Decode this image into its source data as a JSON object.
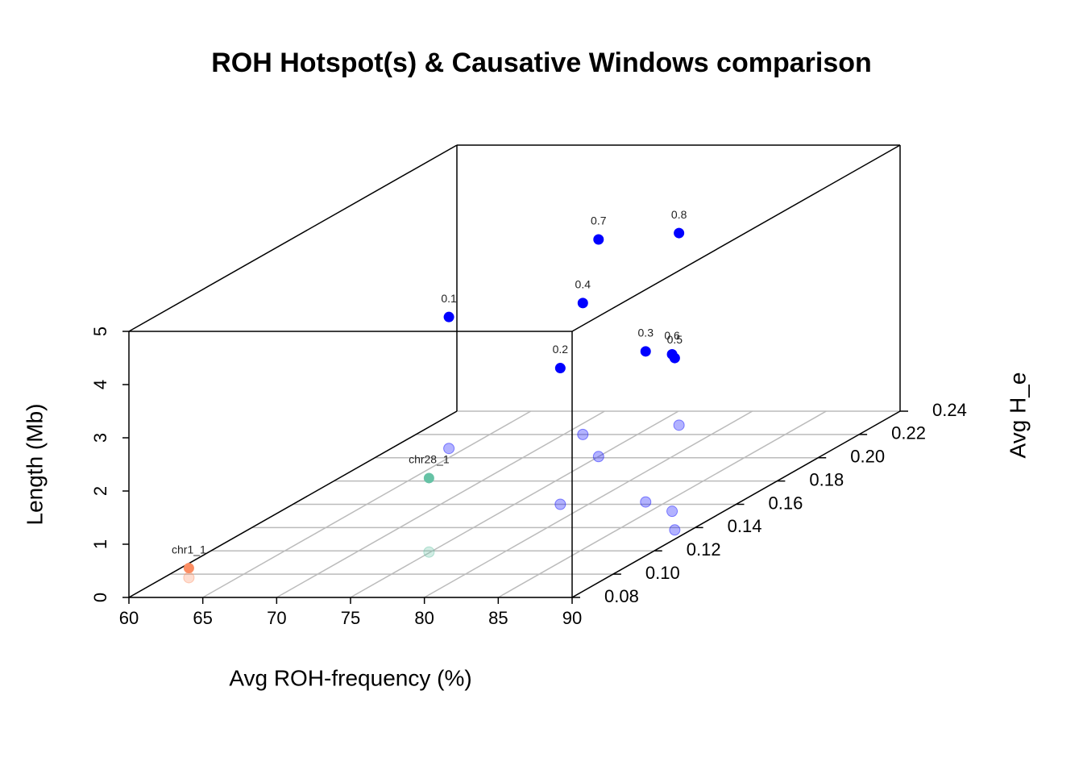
{
  "chart_data": {
    "type": "scatter3d",
    "title": "ROH Hotspot(s) & Causative Windows comparison",
    "x_label": "Avg ROH-frequency (%)",
    "y_label": "Avg H_e",
    "z_label": "Length (Mb)",
    "labels": [
      "0.1",
      "0.2",
      "0.3",
      "0.4",
      "0.5",
      "0.6",
      "0.7",
      "0.8",
      "chr28_1",
      "chr1_1"
    ],
    "x": [
      63.9,
      78.1,
      83.6,
      71.3,
      88.9,
      86.5,
      75.0,
      76.7,
      74.9,
      61.7
    ],
    "y": [
      0.208,
      0.16,
      0.162,
      0.22,
      0.138,
      0.154,
      0.201,
      0.228,
      0.119,
      0.097
    ],
    "z": [
      2.47,
      2.56,
      2.83,
      2.47,
      3.23,
      2.95,
      4.08,
      3.61,
      1.39,
      0.18
    ],
    "colors": [
      "#0000ff",
      "#0000ff",
      "#0000ff",
      "#0000ff",
      "#0000ff",
      "#0000ff",
      "#0000ff",
      "#0000ff",
      "#66c2a5",
      "#fc8d62"
    ],
    "xlim": [
      60,
      90
    ],
    "xticks": [
      60,
      65,
      70,
      75,
      80,
      85,
      90
    ],
    "ylim": [
      0.08,
      0.24
    ],
    "yticks": [
      0.08,
      {
        "value": 0.1,
        "label": "0.10"
      },
      0.12,
      0.14,
      0.16,
      0.18,
      {
        "value": 0.2,
        "label": "0.20"
      },
      0.22,
      0.24
    ],
    "zlim": [
      0,
      5
    ],
    "zticks": [
      0,
      1,
      2,
      3,
      4,
      5
    ],
    "grid": true
  }
}
